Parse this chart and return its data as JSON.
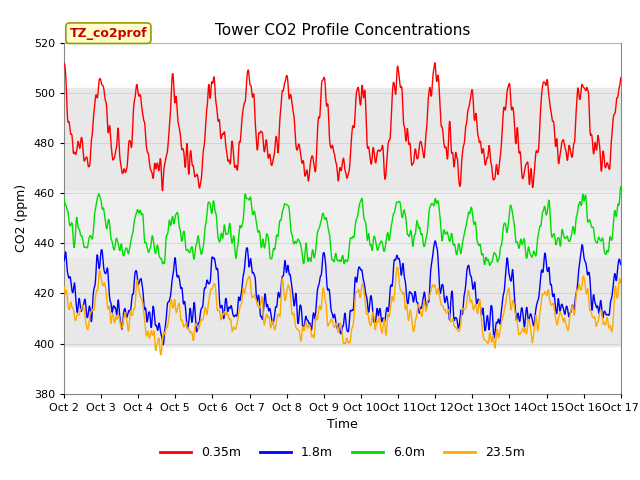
{
  "title": "Tower CO2 Profile Concentrations",
  "xlabel": "Time",
  "ylabel": "CO2 (ppm)",
  "ylim": [
    380,
    520
  ],
  "yticks": [
    380,
    400,
    420,
    440,
    460,
    480,
    500,
    520
  ],
  "num_days": 15,
  "x_tick_labels": [
    "Oct 2",
    "Oct 3",
    "Oct 4",
    "Oct 5",
    "Oct 6",
    "Oct 7",
    "Oct 8",
    "Oct 9",
    "Oct 10",
    "Oct 11",
    "Oct 12",
    "Oct 13",
    "Oct 14",
    "Oct 15",
    "Oct 16",
    "Oct 17"
  ],
  "series_order": [
    "0.35m",
    "1.8m",
    "6.0m",
    "23.5m"
  ],
  "series": {
    "0.35m": {
      "color": "#ff0000",
      "mean": 483,
      "diurnal_amp": 15,
      "noise": 3.0,
      "seed": 42,
      "period_hours": 24
    },
    "1.8m": {
      "color": "#0000ff",
      "mean": 418,
      "diurnal_amp": 10,
      "noise": 2.5,
      "seed": 43,
      "period_hours": 24
    },
    "6.0m": {
      "color": "#00dd00",
      "mean": 444,
      "diurnal_amp": 8,
      "noise": 2.0,
      "seed": 44,
      "period_hours": 24
    },
    "23.5m": {
      "color": "#ffaa00",
      "mean": 412,
      "diurnal_amp": 7,
      "noise": 2.0,
      "seed": 45,
      "period_hours": 24
    }
  },
  "annotation_text": "TZ_co2prof",
  "bg_bands": [
    {
      "ymin": 461,
      "ymax": 502,
      "color": "#e8e8e8"
    },
    {
      "ymin": 434,
      "ymax": 461,
      "color": "#efefef"
    },
    {
      "ymin": 399,
      "ymax": 434,
      "color": "#e8e8e8"
    }
  ],
  "linewidth": 1.0,
  "points_per_day": 144,
  "title_fontsize": 11,
  "tick_fontsize": 8,
  "label_fontsize": 9,
  "legend_fontsize": 9
}
